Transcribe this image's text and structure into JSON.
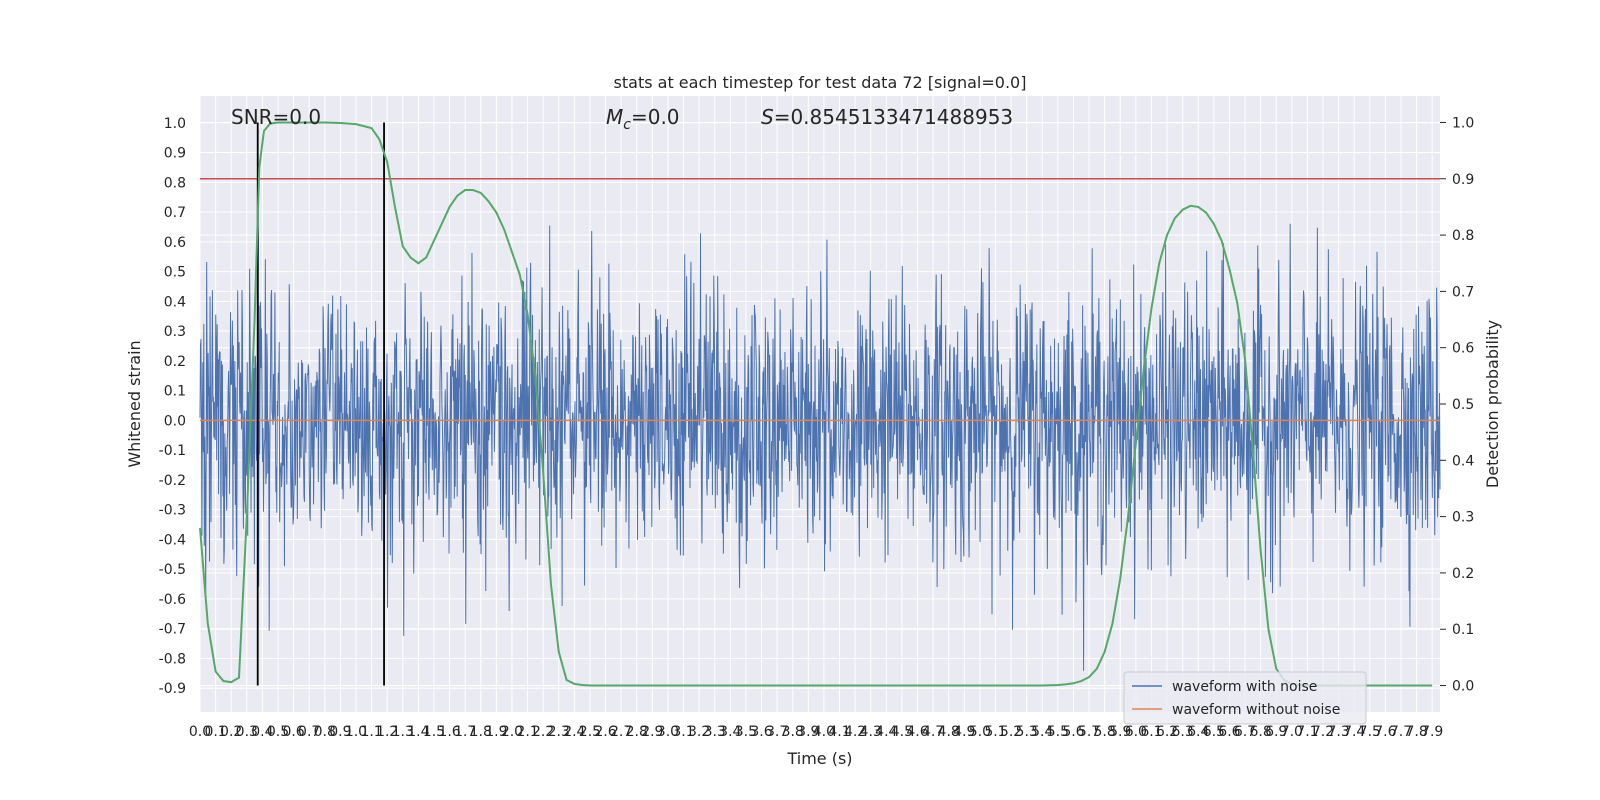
{
  "chart_data": {
    "type": "line",
    "title": "stats at each timestep for test data 72 [signal=0.0]",
    "xlabel": "Time (s)",
    "ylabel": "Whitened strain",
    "y2label": "Detection probability",
    "xlim": [
      0.0,
      7.95
    ],
    "ylim": [
      -0.98,
      1.09
    ],
    "y2lim": [
      -0.047,
      1.047
    ],
    "yticks": [
      -0.9,
      -0.8,
      -0.7,
      -0.6,
      -0.5,
      -0.4,
      -0.3,
      -0.2,
      -0.1,
      0.0,
      0.1,
      0.2,
      0.3,
      0.4,
      0.5,
      0.6,
      0.7,
      0.8,
      0.9,
      1.0
    ],
    "y2ticks": [
      0.0,
      0.1,
      0.2,
      0.3,
      0.4,
      0.5,
      0.6,
      0.7,
      0.8,
      0.9,
      1.0
    ],
    "xtick_step": 0.1,
    "xtick_count": 80,
    "grid": true,
    "legend_position": "lower-right",
    "annotations": {
      "snr": "SNR=0.0",
      "mc_symbol": "M",
      "mc_sub": "c",
      "mc_value": "=0.0",
      "s_symbol": "S",
      "s_value": "=0.8545133471488953"
    },
    "vlines_x": [
      0.37,
      1.18
    ],
    "hline_y2": 0.9,
    "series": [
      {
        "name": "waveform with noise",
        "color": "#4c72b0",
        "sample_rate": 512,
        "approx_abs_max": 0.9,
        "note_values": "noisy whitened strain, values within about -0.9 to 1.0"
      },
      {
        "name": "waveform without noise",
        "color": "#dd8452",
        "constant_value": 0.0
      }
    ],
    "probability": {
      "color": "#55a868",
      "x": [
        0.0,
        0.05,
        0.1,
        0.15,
        0.2,
        0.25,
        0.3,
        0.35,
        0.38,
        0.41,
        0.45,
        0.5,
        0.6,
        0.7,
        0.8,
        0.9,
        1.0,
        1.1,
        1.15,
        1.2,
        1.25,
        1.3,
        1.35,
        1.4,
        1.45,
        1.5,
        1.55,
        1.6,
        1.65,
        1.7,
        1.75,
        1.8,
        1.85,
        1.9,
        1.95,
        2.0,
        2.05,
        2.1,
        2.15,
        2.2,
        2.25,
        2.3,
        2.35,
        2.4,
        2.45,
        2.5,
        3.0,
        4.0,
        5.0,
        5.4,
        5.5,
        5.55,
        5.6,
        5.65,
        5.7,
        5.75,
        5.8,
        5.85,
        5.9,
        5.95,
        6.0,
        6.05,
        6.1,
        6.15,
        6.2,
        6.25,
        6.3,
        6.35,
        6.4,
        6.45,
        6.5,
        6.55,
        6.6,
        6.65,
        6.7,
        6.75,
        6.8,
        6.85,
        6.9,
        6.95,
        7.0,
        7.05,
        7.1,
        7.5,
        7.9
      ],
      "y": [
        0.28,
        0.11,
        0.025,
        0.008,
        0.006,
        0.014,
        0.3,
        0.65,
        0.92,
        0.985,
        0.998,
        1.0,
        1.0,
        1.0,
        1.0,
        0.999,
        0.997,
        0.99,
        0.97,
        0.93,
        0.85,
        0.78,
        0.76,
        0.75,
        0.76,
        0.79,
        0.82,
        0.85,
        0.87,
        0.88,
        0.88,
        0.875,
        0.86,
        0.84,
        0.81,
        0.77,
        0.73,
        0.66,
        0.55,
        0.38,
        0.18,
        0.06,
        0.01,
        0.003,
        0.001,
        0.0,
        0.0,
        0.0,
        0.0,
        0.0,
        0.001,
        0.002,
        0.004,
        0.008,
        0.015,
        0.03,
        0.06,
        0.11,
        0.19,
        0.3,
        0.43,
        0.56,
        0.67,
        0.75,
        0.8,
        0.83,
        0.845,
        0.852,
        0.85,
        0.84,
        0.82,
        0.79,
        0.74,
        0.68,
        0.58,
        0.42,
        0.24,
        0.1,
        0.03,
        0.01,
        0.003,
        0.001,
        0.0,
        0.0,
        0.0
      ]
    }
  }
}
